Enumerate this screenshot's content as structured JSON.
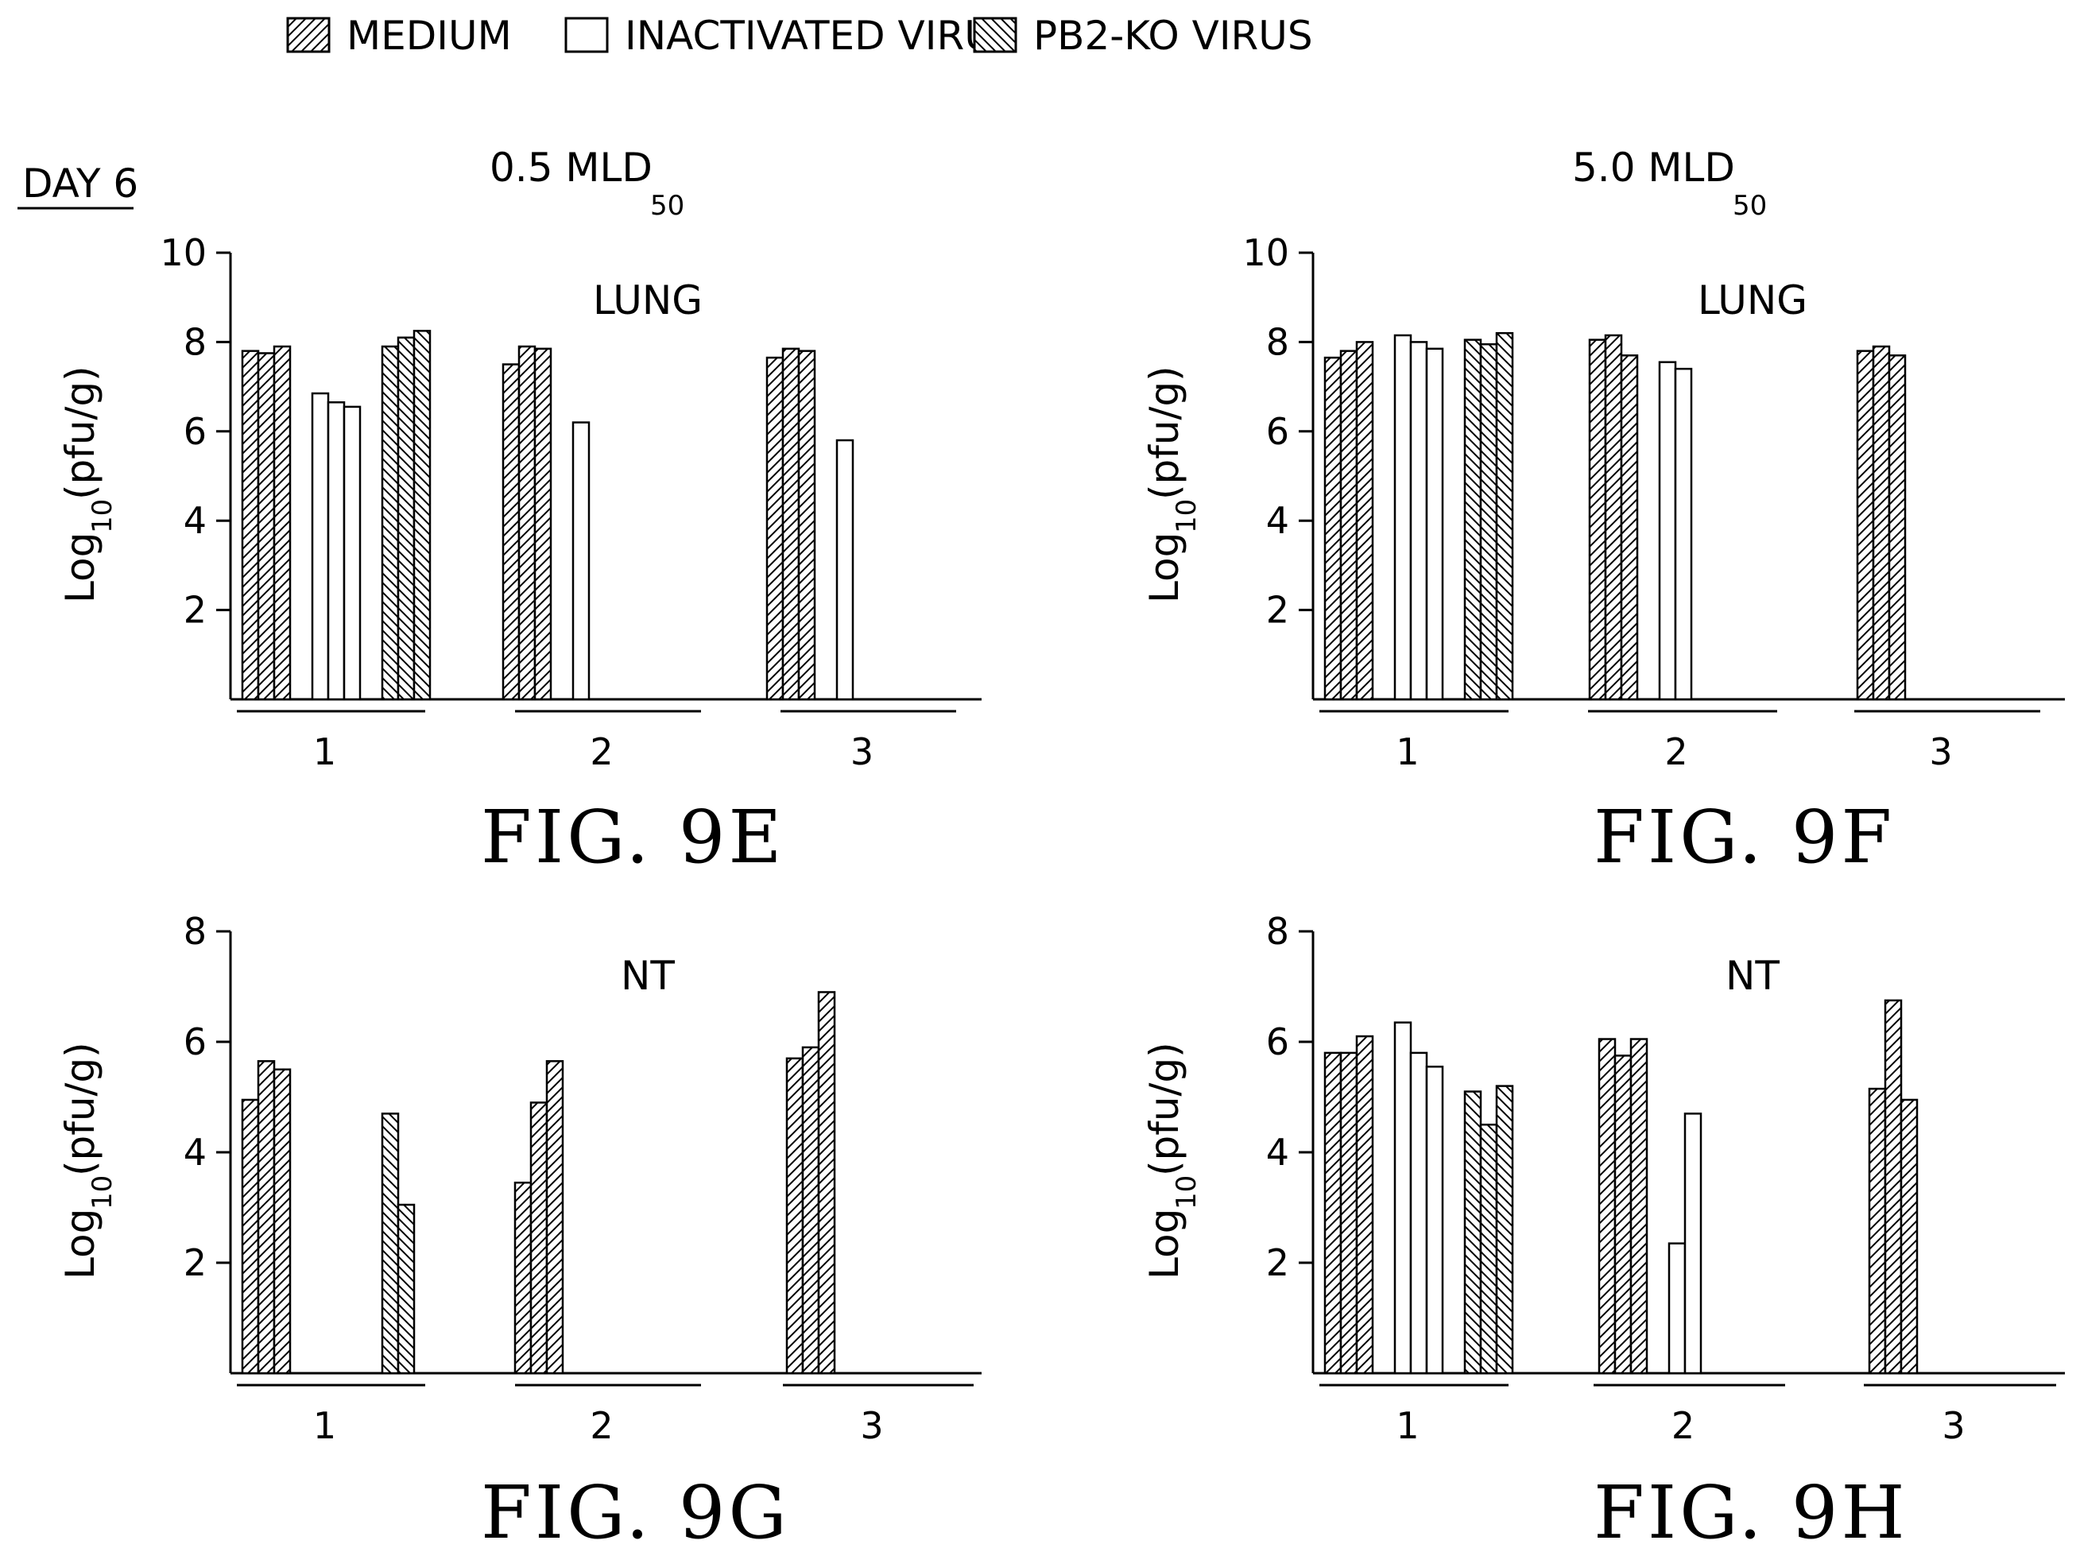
{
  "header": {
    "day_label": "DAY 6"
  },
  "legend": {
    "items": [
      {
        "label": "MEDIUM",
        "pattern": "hatch-up"
      },
      {
        "label": "INACTIVATED VIRUS",
        "pattern": "none"
      },
      {
        "label": "PB2-KO VIRUS",
        "pattern": "hatch-down"
      }
    ]
  },
  "dose_titles": [
    {
      "main": "0.5 MLD",
      "sub": "50"
    },
    {
      "main": "5.0 MLD",
      "sub": "50"
    }
  ],
  "colors": {
    "ink": "#000000",
    "paper": "#ffffff"
  },
  "chart_data": [
    {
      "type": "bar",
      "figure_label": "FIG. 9E",
      "panel_label": "LUNG",
      "ylabel_main": "Log",
      "ylabel_sub": "10",
      "ylabel_tail": "(pfu/g)",
      "ylim": [
        0,
        10
      ],
      "yticks": [
        2,
        4,
        6,
        8,
        10
      ],
      "groups": [
        {
          "label": "1",
          "medium": [
            7.8,
            7.75,
            7.9
          ],
          "inactivated": [
            6.85,
            6.65,
            6.55
          ],
          "pb2ko": [
            7.9,
            8.1,
            8.25
          ]
        },
        {
          "label": "2",
          "medium": [
            7.5,
            7.9,
            7.85
          ],
          "inactivated": [
            6.2
          ],
          "pb2ko": []
        },
        {
          "label": "3",
          "medium": [
            7.65,
            7.85,
            7.8
          ],
          "inactivated": [
            5.8
          ],
          "pb2ko": []
        }
      ]
    },
    {
      "type": "bar",
      "figure_label": "FIG. 9F",
      "panel_label": "LUNG",
      "ylabel_main": "Log",
      "ylabel_sub": "10",
      "ylabel_tail": "(pfu/g)",
      "ylim": [
        0,
        10
      ],
      "yticks": [
        2,
        4,
        6,
        8,
        10
      ],
      "groups": [
        {
          "label": "1",
          "medium": [
            7.65,
            7.8,
            8.0
          ],
          "inactivated": [
            8.15,
            8.0,
            7.85
          ],
          "pb2ko": [
            8.05,
            7.95,
            8.2
          ]
        },
        {
          "label": "2",
          "medium": [
            8.05,
            8.15,
            7.7
          ],
          "inactivated": [
            7.55,
            7.4
          ],
          "pb2ko": []
        },
        {
          "label": "3",
          "medium": [
            7.8,
            7.9,
            7.7
          ],
          "inactivated": [],
          "pb2ko": []
        }
      ]
    },
    {
      "type": "bar",
      "figure_label": "FIG. 9G",
      "panel_label": "NT",
      "ylabel_main": "Log",
      "ylabel_sub": "10",
      "ylabel_tail": "(pfu/g)",
      "ylim": [
        0,
        8
      ],
      "yticks": [
        2,
        4,
        6,
        8
      ],
      "groups": [
        {
          "label": "1",
          "medium": [
            4.95,
            5.65,
            5.5
          ],
          "inactivated": [],
          "pb2ko": [
            4.7,
            3.05
          ]
        },
        {
          "label": "2",
          "medium": [
            3.45,
            4.9,
            5.65
          ],
          "inactivated": [],
          "pb2ko": []
        },
        {
          "label": "3",
          "medium": [
            5.7,
            5.9,
            6.9
          ],
          "inactivated": [],
          "pb2ko": []
        }
      ]
    },
    {
      "type": "bar",
      "figure_label": "FIG. 9H",
      "panel_label": "NT",
      "ylabel_main": "Log",
      "ylabel_sub": "10",
      "ylabel_tail": "(pfu/g)",
      "ylim": [
        0,
        8
      ],
      "yticks": [
        2,
        4,
        6,
        8
      ],
      "groups": [
        {
          "label": "1",
          "medium": [
            5.8,
            5.8,
            6.1
          ],
          "inactivated": [
            6.35,
            5.8,
            5.55
          ],
          "pb2ko": [
            5.1,
            4.5,
            5.2
          ]
        },
        {
          "label": "2",
          "medium": [
            6.05,
            5.75,
            6.05
          ],
          "inactivated": [
            2.35,
            4.7
          ],
          "pb2ko": []
        },
        {
          "label": "3",
          "medium": [
            5.15,
            6.75,
            4.95
          ],
          "inactivated": [],
          "pb2ko": []
        }
      ]
    }
  ]
}
